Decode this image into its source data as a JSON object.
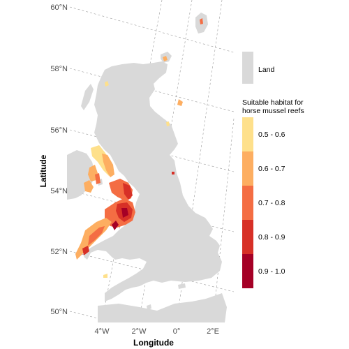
{
  "map": {
    "latitude_labels": [
      "50°N",
      "52°N",
      "54°N",
      "56°N",
      "58°N",
      "60°N"
    ],
    "longitude_labels": [
      "4°W",
      "2°W",
      "0°",
      "2°E"
    ],
    "x_axis_title": "Longitude",
    "y_axis_title": "Latitude"
  },
  "legend": {
    "land_label": "Land",
    "land_color": "#d9d9d9",
    "habitat_title_line1": "Suitable habitat for",
    "habitat_title_line2": "horse mussel reefs",
    "classes": [
      {
        "label": "0.5 - 0.6",
        "color": "#fee08b"
      },
      {
        "label": "0.6 - 0.7",
        "color": "#fdae61"
      },
      {
        "label": "0.7 - 0.8",
        "color": "#f46d43"
      },
      {
        "label": "0.8 - 0.9",
        "color": "#d73027"
      },
      {
        "label": "0.9 - 1.0",
        "color": "#a50026"
      }
    ]
  }
}
